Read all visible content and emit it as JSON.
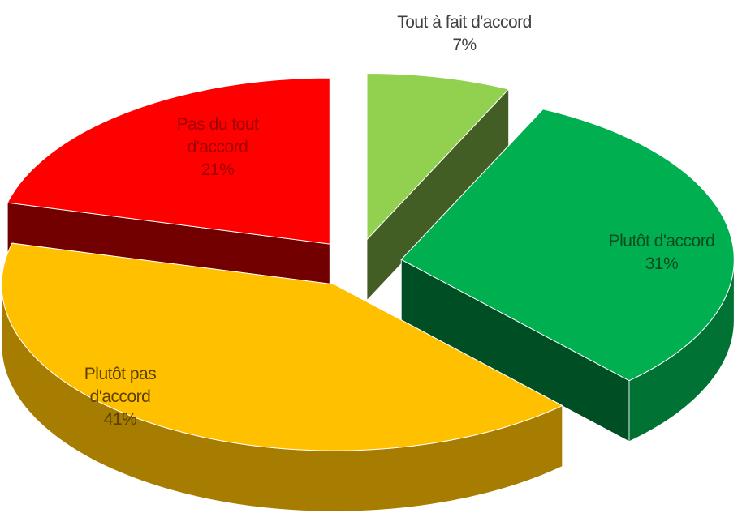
{
  "chart_data": {
    "type": "pie3d",
    "categories": [
      "Tout à fait d'accord",
      "Plutôt d'accord",
      "Plutôt pas d'accord",
      "Pas du tout d'accord"
    ],
    "values": [
      7,
      31,
      41,
      21
    ],
    "value_labels": [
      "7%",
      "31%",
      "41%",
      "21%"
    ],
    "colors": [
      "#92d050",
      "#00b050",
      "#ffc000",
      "#ff0000"
    ]
  }
}
